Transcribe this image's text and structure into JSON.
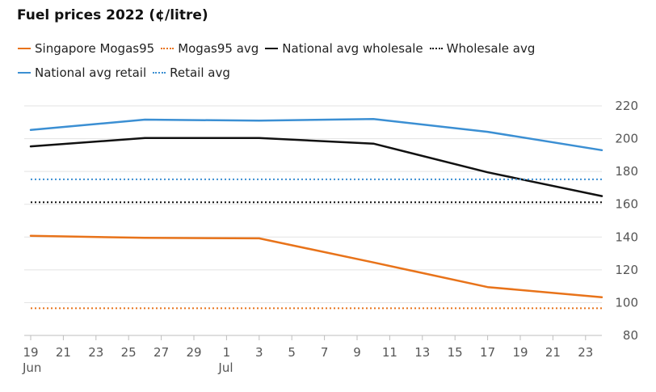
{
  "chart_data": {
    "type": "line",
    "title": "Fuel prices 2022 (¢/litre)",
    "x_ticks": [
      "19",
      "21",
      "23",
      "25",
      "27",
      "29",
      "1",
      "3",
      "5",
      "7",
      "9",
      "11",
      "13",
      "15",
      "17",
      "19",
      "21",
      "23"
    ],
    "month_labels": [
      {
        "label": "Jun",
        "tick_index": 0
      },
      {
        "label": "Jul",
        "tick_index": 6
      }
    ],
    "x_range": [
      0,
      35
    ],
    "ylim": [
      80,
      220
    ],
    "y_ticks": [
      80,
      100,
      120,
      140,
      160,
      180,
      200,
      220
    ],
    "grid": "horizontal",
    "legend_placement": "top-left",
    "series": [
      {
        "name": "Singapore Mogas95",
        "color": "#e8731a",
        "style": "solid",
        "points": [
          [
            0,
            140.8
          ],
          [
            7,
            139.5
          ],
          [
            14,
            139.2
          ],
          [
            21,
            124.5
          ],
          [
            28,
            109.5
          ],
          [
            35,
            103.3
          ]
        ]
      },
      {
        "name": "Mogas95 avg",
        "color": "#e8731a",
        "style": "dotted",
        "constant": 96.6
      },
      {
        "name": "National avg wholesale",
        "color": "#111111",
        "style": "solid",
        "points": [
          [
            0,
            195.3
          ],
          [
            7,
            200.4
          ],
          [
            14,
            200.4
          ],
          [
            21,
            197.0
          ],
          [
            28,
            179.5
          ],
          [
            35,
            165.0
          ]
        ]
      },
      {
        "name": "Wholesale avg",
        "color": "#111111",
        "style": "dotted",
        "constant": 161.2
      },
      {
        "name": "National avg retail",
        "color": "#3b8fd3",
        "style": "solid",
        "points": [
          [
            0,
            205.3
          ],
          [
            7,
            211.6
          ],
          [
            14,
            211.0
          ],
          [
            21,
            212.0
          ],
          [
            28,
            204.2
          ],
          [
            35,
            193.0
          ]
        ]
      },
      {
        "name": "Retail avg",
        "color": "#3b8fd3",
        "style": "dotted",
        "constant": 175.2
      }
    ]
  }
}
